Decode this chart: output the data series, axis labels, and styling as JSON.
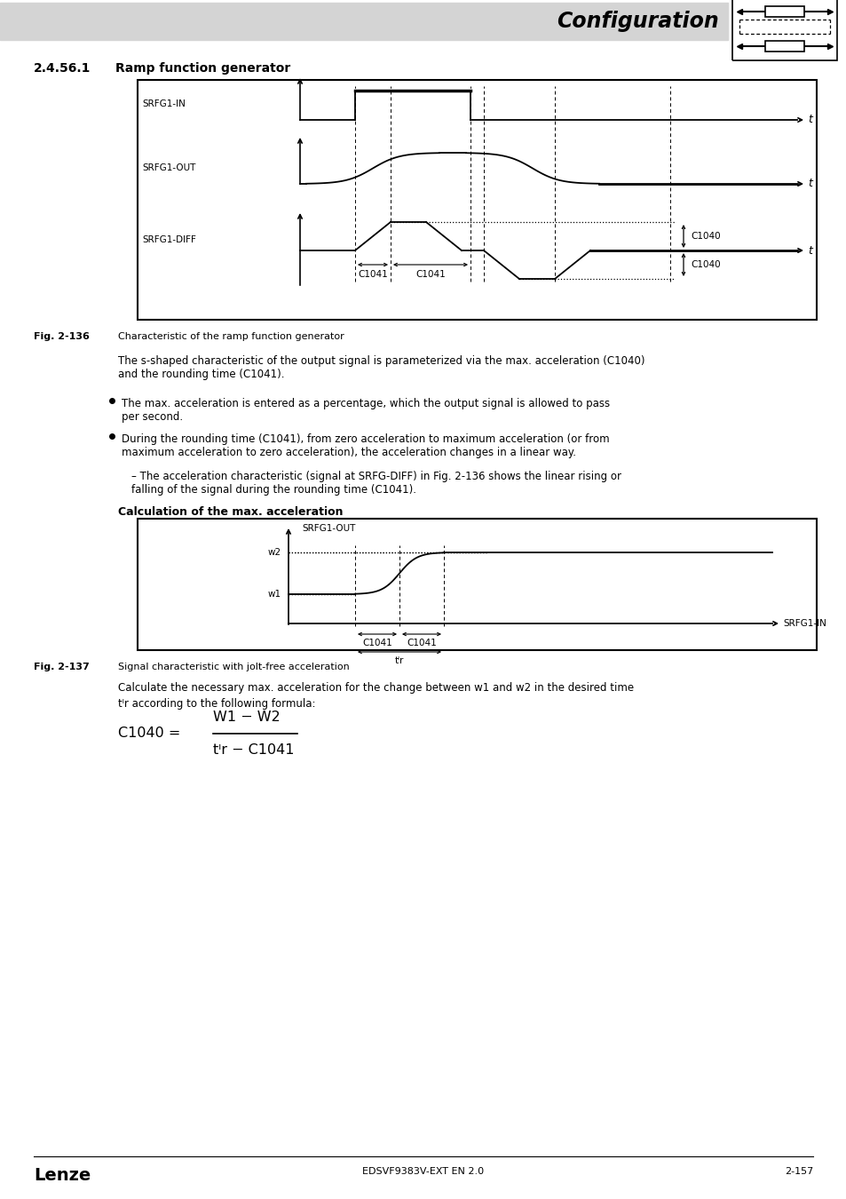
{
  "page_bg": "#ffffff",
  "header_bg": "#d4d4d4",
  "header_text": "Configuration",
  "section_title": "2.4.56.1",
  "section_title_text": "Ramp function generator",
  "fig136_caption_bold": "Fig. 2-136",
  "fig136_caption": "Characteristic of the ramp function generator",
  "para1": "The s-shaped characteristic of the output signal is parameterized via the max. acceleration (C1040)\nand the rounding time (C1041).",
  "bullet1": "The max. acceleration is entered as a percentage, which the output signal is allowed to pass\nper second.",
  "bullet2": "During the rounding time (C1041), from zero acceleration to maximum acceleration (or from\nmaximum acceleration to zero acceleration), the acceleration changes in a linear way.",
  "sub_bullet": "The acceleration characteristic (signal at SRFG-DIFF) in Fig. 2-136 shows the linear rising or\nfalling of the signal during the rounding time (C1041).",
  "calc_title": "Calculation of the max. acceleration",
  "fig137_caption_bold": "Fig. 2-137",
  "fig137_caption": "Signal characteristic with jolt-free acceleration",
  "para2_line1": "Calculate the necessary max. acceleration for the change between w1 and w2 in the desired time",
  "para2_line2": "tᴵr according to the following formula:",
  "formula_lhs": "C1040 =",
  "formula_num": "W1 − W2",
  "formula_den": "tᴵr − C1041",
  "footer_left": "Lenze",
  "footer_center": "EDSVF9383V-EXT EN 2.0",
  "footer_right": "2-157"
}
